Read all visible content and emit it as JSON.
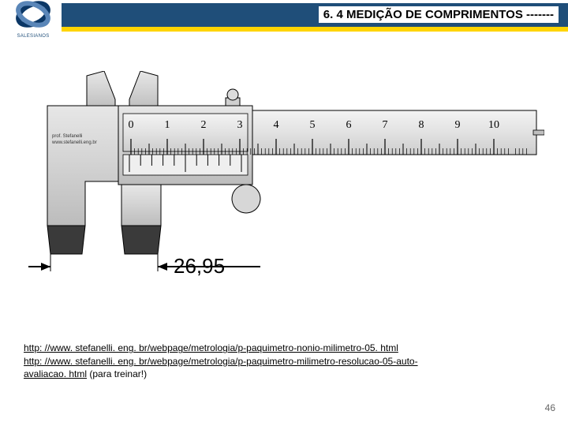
{
  "header": {
    "title": "6. 4  MEDIÇÃO DE COMPRIMENTOS  -------",
    "logo_caption": "SALESIANOS",
    "logo_colors": {
      "dark": "#0b3766",
      "light": "#5a86b8"
    },
    "blue": "#1f4e79",
    "yellow": "#ffd400"
  },
  "caliper": {
    "main_ticks": [
      "0",
      "1",
      "2",
      "3",
      "4",
      "5",
      "6",
      "7",
      "8",
      "9",
      "10"
    ],
    "vernier_ticks_count": 11,
    "reading": "26,95",
    "signature_line1": "prof. Stefanelli",
    "signature_line2": "www.stefanelli.eng.br",
    "colors": {
      "body_light": "#e7e7e7",
      "body_mid": "#d2d2d2",
      "body_dark": "#bcbcbc",
      "stroke": "#000000",
      "jaw_dark": "#3a3a3a",
      "arrow": "#000000"
    }
  },
  "links": {
    "l1": "http: //www. stefanelli. eng. br/webpage/metrologia/p-paquimetro-nonio-milimetro-05. html",
    "l2a": "http: //www. stefanelli. eng. br/webpage/metrologia/p-paquimetro-milimetro-resolucao-05-auto-",
    "l2b": "avaliacao. html",
    "l2_suffix": "  (para treinar!)"
  },
  "page_number": "46"
}
